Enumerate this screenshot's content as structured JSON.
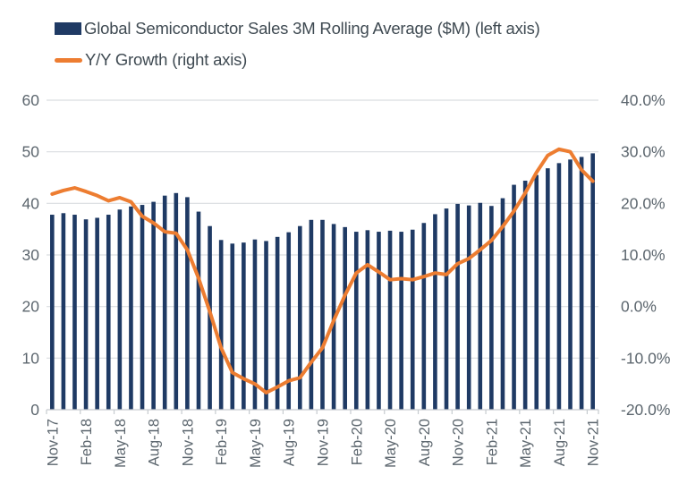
{
  "colors": {
    "bar": "#1F3A64",
    "line": "#ED7D31",
    "grid": "#DADDE0",
    "axis_line": "#C6CBCF",
    "axis_text": "#5C666E",
    "legend_text": "#3F4A52",
    "background": "#FFFFFF"
  },
  "legend": {
    "series1_label": "Global Semiconductor Sales 3M Rolling Average ($M) (left axis)",
    "series2_label": "Y/Y Growth (right axis)"
  },
  "chart_data": {
    "type": "bar",
    "subtype": "combo-bar-line",
    "title": "",
    "xlabel": "",
    "ylabel_left": "",
    "ylabel_right": "",
    "grid": true,
    "legend_position": "top-left",
    "categories": [
      "Nov-17",
      "Dec-17",
      "Jan-18",
      "Feb-18",
      "Mar-18",
      "Apr-18",
      "May-18",
      "Jun-18",
      "Jul-18",
      "Aug-18",
      "Sep-18",
      "Oct-18",
      "Nov-18",
      "Dec-18",
      "Jan-19",
      "Feb-19",
      "Mar-19",
      "Apr-19",
      "May-19",
      "Jun-19",
      "Jul-19",
      "Aug-19",
      "Sep-19",
      "Oct-19",
      "Nov-19",
      "Dec-19",
      "Jan-20",
      "Feb-20",
      "Mar-20",
      "Apr-20",
      "May-20",
      "Jun-20",
      "Jul-20",
      "Aug-20",
      "Sep-20",
      "Oct-20",
      "Nov-20",
      "Dec-20",
      "Jan-21",
      "Feb-21",
      "Mar-21",
      "Apr-21",
      "May-21",
      "Jun-21",
      "Jul-21",
      "Aug-21",
      "Sep-21",
      "Oct-21",
      "Nov-21"
    ],
    "x_tick_labels": [
      "Nov-17",
      "Feb-18",
      "May-18",
      "Aug-18",
      "Nov-18",
      "Feb-19",
      "May-19",
      "Aug-19",
      "Nov-19",
      "Feb-20",
      "May-20",
      "Aug-20",
      "Nov-20",
      "Feb-21",
      "May-21",
      "Aug-21",
      "Nov-21"
    ],
    "series": [
      {
        "name": "Global Semiconductor Sales 3M Rolling Average ($M) (left axis)",
        "type": "bar",
        "axis": "left",
        "values": [
          37.8,
          38.1,
          37.8,
          36.9,
          37.2,
          37.8,
          38.8,
          39.4,
          39.7,
          40.3,
          41.5,
          42.0,
          41.2,
          38.4,
          35.6,
          32.9,
          32.2,
          32.4,
          33.0,
          32.7,
          33.5,
          34.4,
          35.6,
          36.8,
          36.8,
          36.0,
          35.4,
          34.5,
          34.8,
          34.5,
          34.7,
          34.5,
          34.9,
          36.2,
          37.9,
          39.0,
          39.9,
          39.6,
          40.1,
          39.5,
          41.0,
          43.6,
          44.4,
          45.5,
          46.8,
          47.8,
          48.5,
          49.0,
          49.7
        ]
      },
      {
        "name": "Y/Y Growth (right axis)",
        "type": "line",
        "axis": "right",
        "values": [
          21.8,
          22.5,
          23.0,
          22.3,
          21.5,
          20.5,
          21.1,
          20.3,
          17.5,
          16.2,
          14.5,
          14.2,
          11.0,
          5.5,
          -1.0,
          -8.0,
          -12.8,
          -14.0,
          -15.0,
          -16.7,
          -15.6,
          -14.4,
          -13.8,
          -10.8,
          -8.0,
          -2.7,
          2.2,
          6.5,
          8.1,
          6.7,
          5.2,
          5.4,
          5.2,
          5.8,
          6.5,
          6.2,
          8.3,
          9.3,
          11.0,
          12.8,
          15.5,
          18.5,
          22.0,
          26.0,
          29.3,
          30.5,
          30.0,
          26.5,
          24.3
        ]
      }
    ],
    "left_axis": {
      "min": 0,
      "max": 60,
      "step": 10,
      "labels": [
        "0",
        "10",
        "20",
        "30",
        "40",
        "50",
        "60"
      ]
    },
    "right_axis": {
      "min": -20,
      "max": 40,
      "step": 10,
      "labels": [
        "-20.0%",
        "-10.0%",
        "0.0%",
        "10.0%",
        "20.0%",
        "30.0%",
        "40.0%"
      ]
    }
  }
}
